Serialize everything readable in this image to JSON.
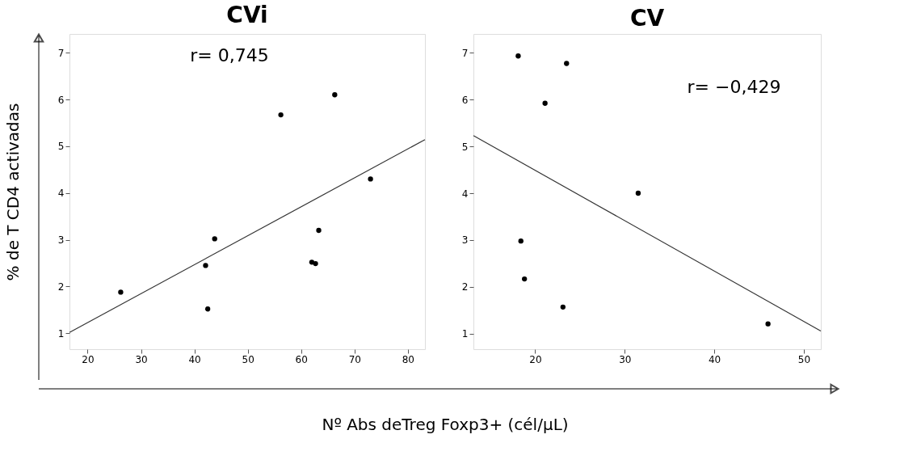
{
  "chart_data": [
    {
      "type": "scatter",
      "title": "CVi",
      "xlabel": "Nº Abs deTreg Foxp3+ (cél/µL)",
      "ylabel": "% de T CD4 activadas",
      "xlim": [
        16.6,
        83.2
      ],
      "ylim": [
        0.66,
        7.4
      ],
      "xticks": [
        20,
        30,
        40,
        50,
        60,
        70,
        80
      ],
      "yticks": [
        1,
        2,
        3,
        4,
        5,
        6,
        7
      ],
      "grid": false,
      "annotations": [
        "r=  0,745"
      ],
      "series": [
        {
          "type": "scatter",
          "marker": "circle",
          "color": "#000000",
          "x": [
            26.2,
            42.1,
            42.5,
            43.8,
            56.2,
            62.0,
            62.7,
            63.3,
            66.3,
            73.0
          ],
          "values": [
            1.88,
            2.45,
            1.52,
            3.02,
            5.67,
            2.52,
            2.49,
            3.2,
            6.1,
            4.3
          ]
        },
        {
          "type": "line",
          "color": "#333333",
          "x": [
            16.6,
            83.2
          ],
          "values": [
            1.02,
            5.14
          ]
        }
      ]
    },
    {
      "type": "scatter",
      "title": "CV",
      "xlim": [
        13.1,
        51.9
      ],
      "ylim": [
        0.67,
        7.4
      ],
      "xticks": [
        20,
        30,
        40,
        50
      ],
      "yticks": [
        1,
        2,
        3,
        4,
        5,
        6,
        7
      ],
      "grid": false,
      "annotations": [
        "r= −0,429"
      ],
      "series": [
        {
          "type": "scatter",
          "marker": "circle",
          "color": "#000000",
          "x": [
            18.1,
            23.5,
            21.1,
            31.5,
            18.4,
            18.8,
            23.1,
            46.0
          ],
          "values": [
            6.93,
            6.77,
            5.92,
            4.0,
            2.98,
            2.17,
            1.57,
            1.21
          ]
        },
        {
          "type": "line",
          "color": "#333333",
          "x": [
            13.1,
            51.9
          ],
          "values": [
            5.23,
            1.06
          ]
        }
      ]
    }
  ]
}
